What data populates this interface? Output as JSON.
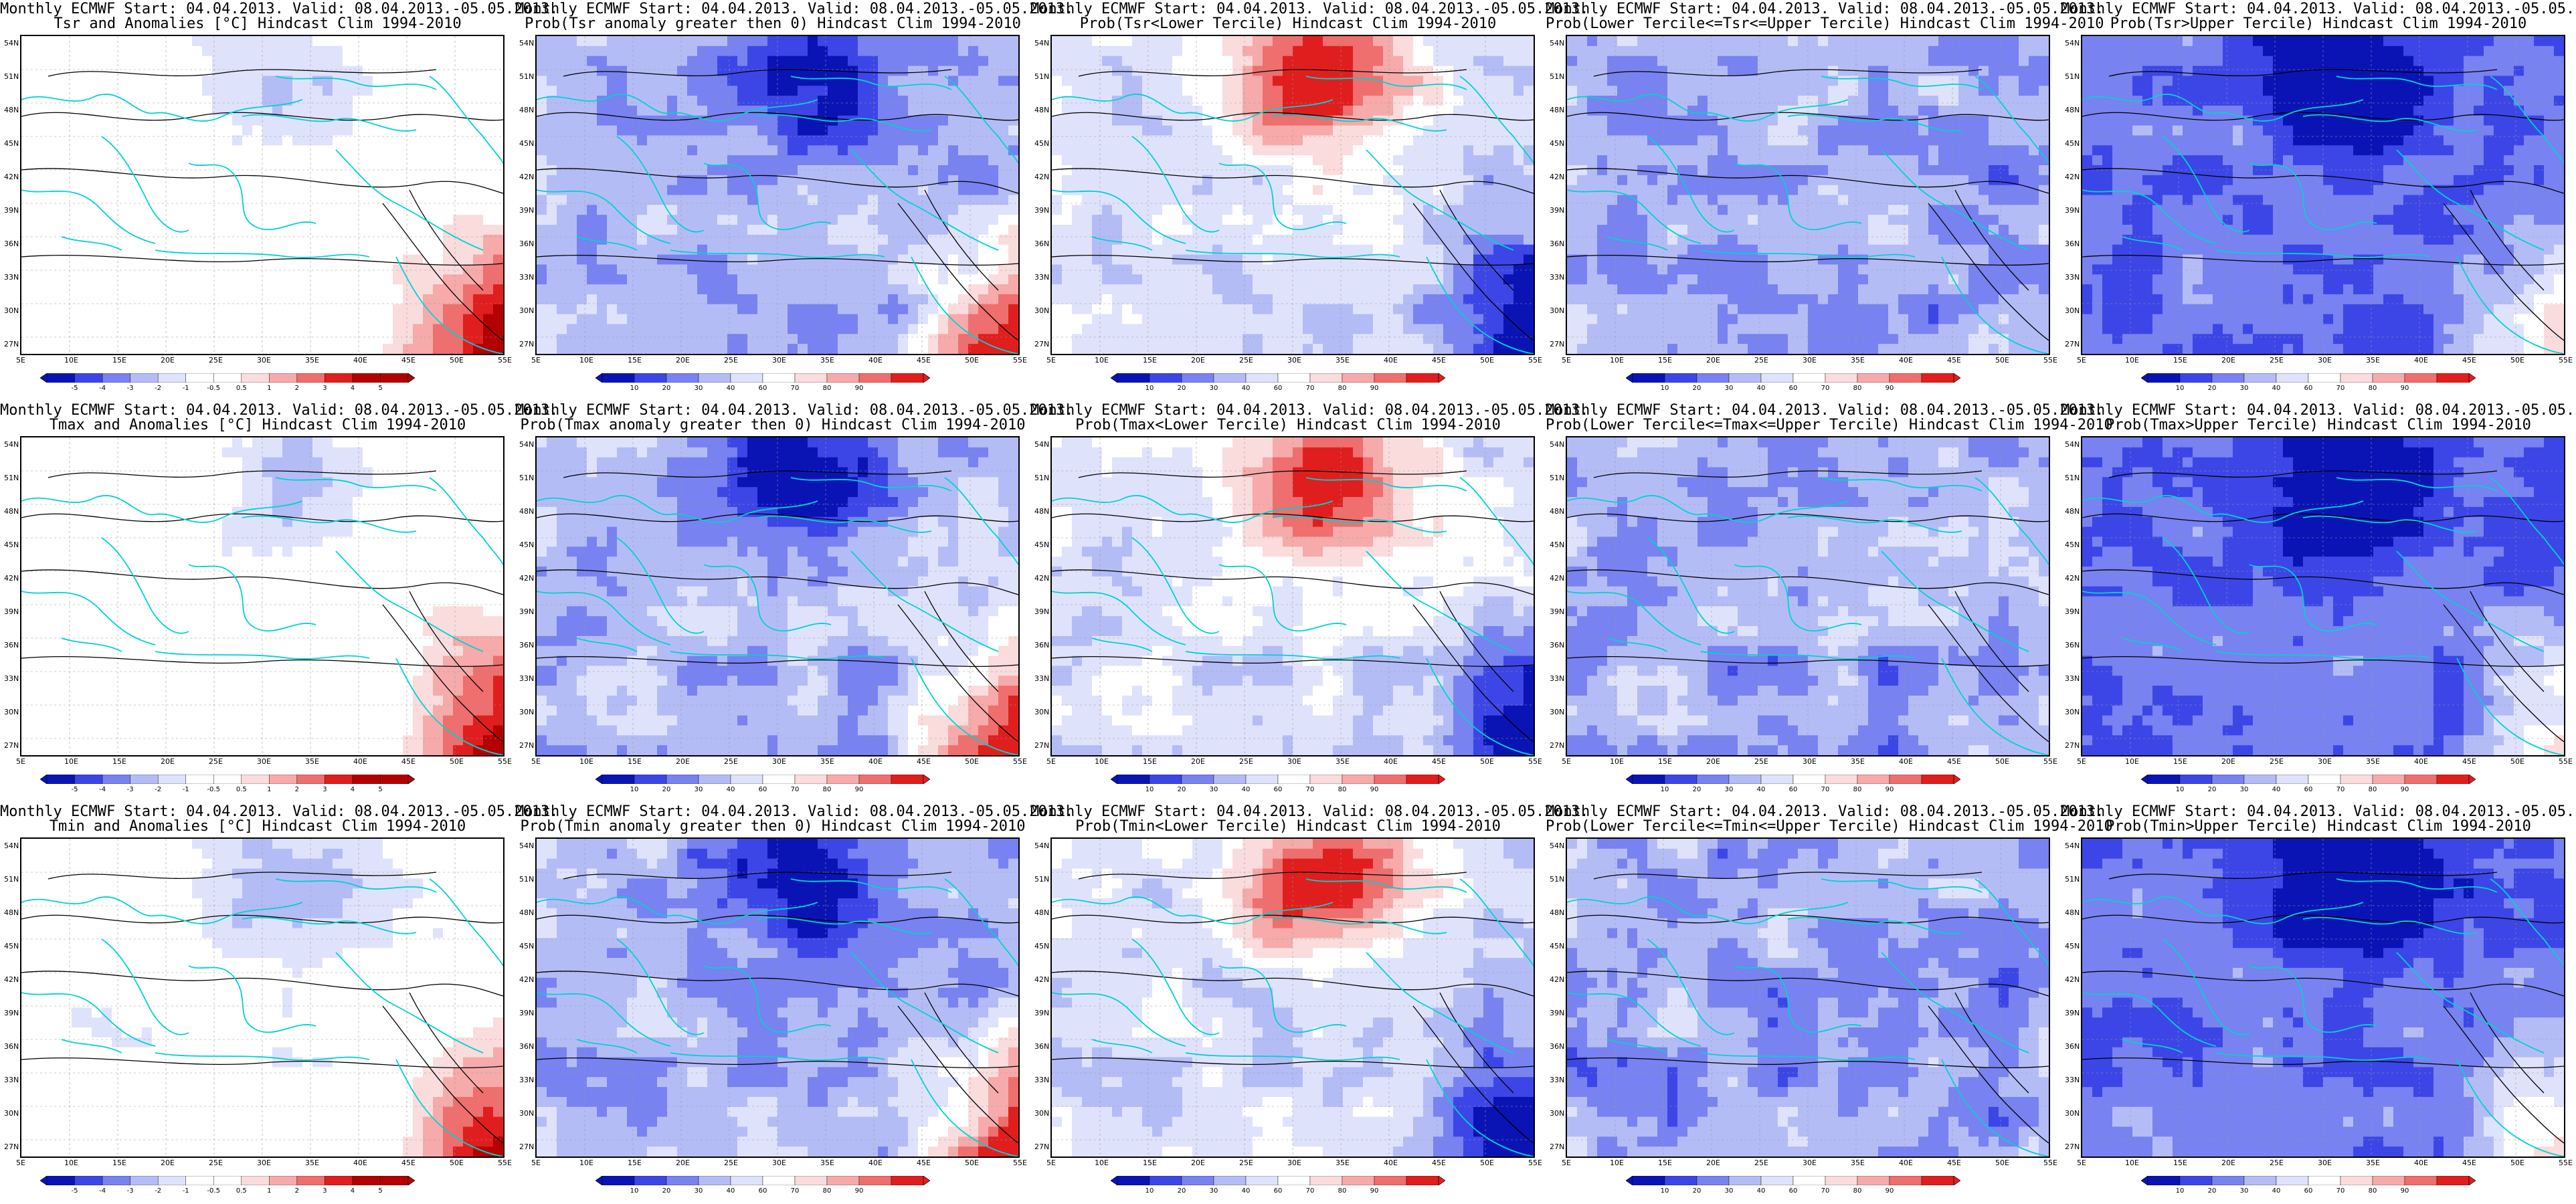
{
  "header_line": "Monthly ECMWF Start: 04.04.2013. Valid: 08.04.2013.-05.05.2013.",
  "lat_labels": [
    "54N",
    "51N",
    "48N",
    "45N",
    "42N",
    "39N",
    "36N",
    "33N",
    "30N",
    "27N"
  ],
  "lon_labels": [
    "5E",
    "10E",
    "15E",
    "20E",
    "25E",
    "30E",
    "35E",
    "40E",
    "45E",
    "50E",
    "55E"
  ],
  "anomaly_scale": [
    "-5",
    "-4",
    "-3",
    "-2",
    "-1",
    "-0.5",
    "0.5",
    "1",
    "2",
    "3",
    "4",
    "5"
  ],
  "probability_scale": [
    "10",
    "20",
    "30",
    "40",
    "60",
    "70",
    "80",
    "90"
  ],
  "colors": {
    "deep_blue": "#0a14b4",
    "blue": "#3c46e6",
    "mid_blue": "#7882f0",
    "light_blue": "#b4bcf6",
    "pale_blue": "#dfe2fb",
    "white": "#ffffff",
    "pale_red": "#fadcdc",
    "light_red": "#f6aaaa",
    "red": "#ef6e6e",
    "deep_red": "#e01e1e",
    "darkest_red": "#b40000",
    "coast": "#00d2d2",
    "contour": "#000000"
  },
  "rows": [
    {
      "variable": "Tsr",
      "panels": [
        {
          "kind": "anomaly",
          "subtitle": "Tsr and Anomalies [°C] Hindcast Clim 1994-2010"
        },
        {
          "kind": "prob_pos",
          "subtitle": "Prob(Tsr anomaly greater then 0) Hindcast Clim 1994-2010"
        },
        {
          "kind": "prob_low",
          "subtitle": "Prob(Tsr<Lower Tercile) Hindcast Clim 1994-2010"
        },
        {
          "kind": "prob_mid",
          "subtitle": "Prob(Lower Tercile<=Tsr<=Upper Tercile) Hindcast Clim 1994-2010"
        },
        {
          "kind": "prob_up",
          "subtitle": "Prob(Tsr>Upper Tercile) Hindcast Clim 1994-2010"
        }
      ]
    },
    {
      "variable": "Tmax",
      "panels": [
        {
          "kind": "anomaly",
          "subtitle": "Tmax and Anomalies [°C] Hindcast Clim 1994-2010"
        },
        {
          "kind": "prob_pos",
          "subtitle": "Prob(Tmax anomaly greater then 0) Hindcast Clim 1994-2010"
        },
        {
          "kind": "prob_low",
          "subtitle": "Prob(Tmax<Lower Tercile) Hindcast Clim 1994-2010"
        },
        {
          "kind": "prob_mid",
          "subtitle": "Prob(Lower Tercile<=Tmax<=Upper Tercile) Hindcast Clim 1994-2010"
        },
        {
          "kind": "prob_up",
          "subtitle": "Prob(Tmax>Upper Tercile) Hindcast Clim 1994-2010"
        }
      ]
    },
    {
      "variable": "Tmin",
      "panels": [
        {
          "kind": "anomaly",
          "subtitle": "Tmin and Anomalies [°C] Hindcast Clim 1994-2010"
        },
        {
          "kind": "prob_pos",
          "subtitle": "Prob(Tmin anomaly greater then 0) Hindcast Clim 1994-2010"
        },
        {
          "kind": "prob_low",
          "subtitle": "Prob(Tmin<Lower Tercile) Hindcast Clim 1994-2010"
        },
        {
          "kind": "prob_mid",
          "subtitle": "Prob(Lower Tercile<=Tmin<=Upper Tercile) Hindcast Clim 1994-2010"
        },
        {
          "kind": "prob_up",
          "subtitle": "Prob(Tmin>Upper Tercile) Hindcast Clim 1994-2010"
        }
      ]
    }
  ]
}
